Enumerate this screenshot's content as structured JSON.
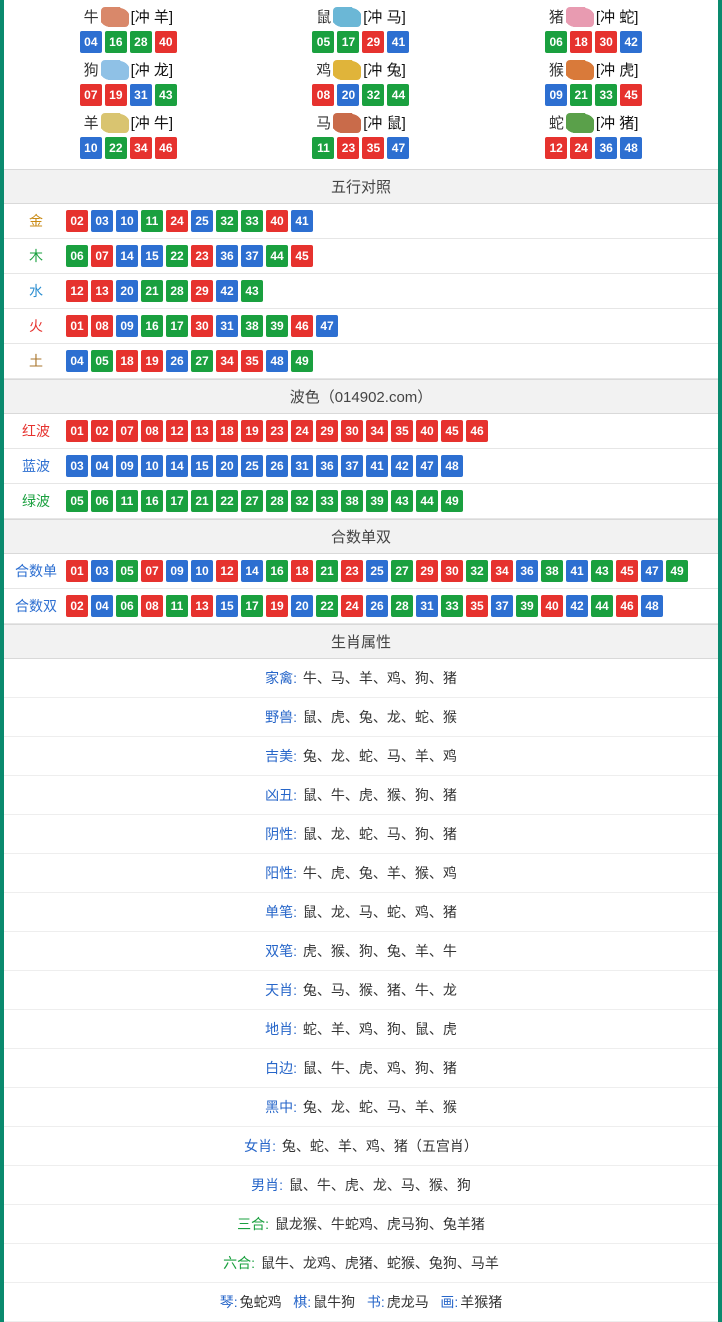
{
  "colors": {
    "red": "#e6322e",
    "blue": "#2d6fd1",
    "green": "#1aa03f",
    "金": "#c98a14",
    "木": "#1aa03f",
    "水": "#2d8fd1",
    "火": "#e6322e",
    "土": "#a8742b",
    "红波": "#e6322e",
    "蓝波": "#2d6fd1",
    "绿波": "#1aa03f",
    "合数单": "#2d6fd1",
    "合数双": "#2d6fd1"
  },
  "number_color_map": {
    "red": [
      1,
      2,
      7,
      8,
      12,
      13,
      18,
      19,
      23,
      24,
      29,
      30,
      34,
      35,
      40,
      45,
      46
    ],
    "blue": [
      3,
      4,
      9,
      10,
      14,
      15,
      20,
      25,
      26,
      31,
      36,
      37,
      41,
      42,
      47,
      48
    ],
    "green": [
      5,
      6,
      11,
      16,
      17,
      21,
      22,
      27,
      28,
      32,
      33,
      38,
      39,
      43,
      44,
      49
    ]
  },
  "zodiac_icon_colors": {
    "牛": "#d9886a",
    "鼠": "#6bb7d6",
    "猪": "#e89bb1",
    "狗": "#8fc1e6",
    "鸡": "#e0b43a",
    "猴": "#d97a3a",
    "羊": "#d9c470",
    "马": "#c96b4a",
    "蛇": "#5aa04a"
  },
  "zodiac": [
    {
      "name": "牛",
      "chong": "羊",
      "nums": [
        4,
        16,
        28,
        40
      ]
    },
    {
      "name": "鼠",
      "chong": "马",
      "nums": [
        5,
        17,
        29,
        41
      ]
    },
    {
      "name": "猪",
      "chong": "蛇",
      "nums": [
        6,
        18,
        30,
        42
      ]
    },
    {
      "name": "狗",
      "chong": "龙",
      "nums": [
        7,
        19,
        31,
        43
      ]
    },
    {
      "name": "鸡",
      "chong": "兔",
      "nums": [
        8,
        20,
        32,
        44
      ]
    },
    {
      "name": "猴",
      "chong": "虎",
      "nums": [
        9,
        21,
        33,
        45
      ]
    },
    {
      "name": "羊",
      "chong": "牛",
      "nums": [
        10,
        22,
        34,
        46
      ]
    },
    {
      "name": "马",
      "chong": "鼠",
      "nums": [
        11,
        23,
        35,
        47
      ]
    },
    {
      "name": "蛇",
      "chong": "猪",
      "nums": [
        12,
        24,
        36,
        48
      ]
    }
  ],
  "sections": {
    "五行对照": [
      {
        "label": "金",
        "nums": [
          2,
          3,
          10,
          11,
          24,
          25,
          32,
          33,
          40,
          41
        ]
      },
      {
        "label": "木",
        "nums": [
          6,
          7,
          14,
          15,
          22,
          23,
          36,
          37,
          44,
          45
        ]
      },
      {
        "label": "水",
        "nums": [
          12,
          13,
          20,
          21,
          28,
          29,
          42,
          43
        ]
      },
      {
        "label": "火",
        "nums": [
          1,
          8,
          9,
          16,
          17,
          30,
          31,
          38,
          39,
          46,
          47
        ]
      },
      {
        "label": "土",
        "nums": [
          4,
          5,
          18,
          19,
          26,
          27,
          34,
          35,
          48,
          49
        ]
      }
    ],
    "波色（014902.com）": [
      {
        "label": "红波",
        "nums": [
          1,
          2,
          7,
          8,
          12,
          13,
          18,
          19,
          23,
          24,
          29,
          30,
          34,
          35,
          40,
          45,
          46
        ]
      },
      {
        "label": "蓝波",
        "nums": [
          3,
          4,
          9,
          10,
          14,
          15,
          20,
          25,
          26,
          31,
          36,
          37,
          41,
          42,
          47,
          48
        ]
      },
      {
        "label": "绿波",
        "nums": [
          5,
          6,
          11,
          16,
          17,
          21,
          22,
          27,
          28,
          32,
          33,
          38,
          39,
          43,
          44,
          49
        ]
      }
    ],
    "合数单双": [
      {
        "label": "合数单",
        "nums": [
          1,
          3,
          5,
          7,
          9,
          10,
          12,
          14,
          16,
          18,
          21,
          23,
          25,
          27,
          29,
          30,
          32,
          34,
          36,
          38,
          41,
          43,
          45,
          47,
          49
        ]
      },
      {
        "label": "合数双",
        "nums": [
          2,
          4,
          6,
          8,
          11,
          13,
          15,
          17,
          19,
          20,
          22,
          24,
          26,
          28,
          31,
          33,
          35,
          37,
          39,
          40,
          42,
          44,
          46,
          48
        ]
      }
    ]
  },
  "attrs_title": "生肖属性",
  "attrs": [
    {
      "label": "家禽",
      "text": "牛、马、羊、鸡、狗、猪"
    },
    {
      "label": "野兽",
      "text": "鼠、虎、兔、龙、蛇、猴"
    },
    {
      "label": "吉美",
      "text": "兔、龙、蛇、马、羊、鸡"
    },
    {
      "label": "凶丑",
      "text": "鼠、牛、虎、猴、狗、猪"
    },
    {
      "label": "阴性",
      "text": "鼠、龙、蛇、马、狗、猪"
    },
    {
      "label": "阳性",
      "text": "牛、虎、兔、羊、猴、鸡"
    },
    {
      "label": "单笔",
      "text": "鼠、龙、马、蛇、鸡、猪"
    },
    {
      "label": "双笔",
      "text": "虎、猴、狗、兔、羊、牛"
    },
    {
      "label": "天肖",
      "text": "兔、马、猴、猪、牛、龙"
    },
    {
      "label": "地肖",
      "text": "蛇、羊、鸡、狗、鼠、虎"
    },
    {
      "label": "白边",
      "text": "鼠、牛、虎、鸡、狗、猪"
    },
    {
      "label": "黑中",
      "text": "兔、龙、蛇、马、羊、猴"
    },
    {
      "label": "女肖",
      "text": "兔、蛇、羊、鸡、猪（五宫肖）"
    },
    {
      "label": "男肖",
      "text": "鼠、牛、虎、龙、马、猴、狗"
    },
    {
      "label": "三合",
      "text": "鼠龙猴、牛蛇鸡、虎马狗、兔羊猪",
      "green": true
    },
    {
      "label": "六合",
      "text": "鼠牛、龙鸡、虎猪、蛇猴、兔狗、马羊",
      "green": true
    }
  ],
  "footer_parts": [
    {
      "k": "琴",
      "v": "兔蛇鸡"
    },
    {
      "k": "棋",
      "v": "鼠牛狗"
    },
    {
      "k": "书",
      "v": "虎龙马"
    },
    {
      "k": "画",
      "v": "羊猴猪"
    }
  ]
}
